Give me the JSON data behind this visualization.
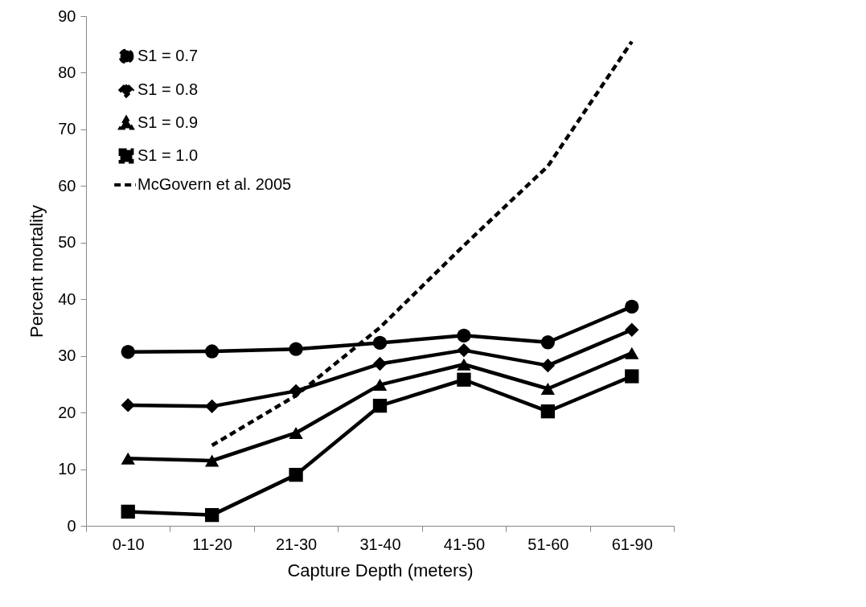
{
  "chart_data": {
    "type": "line",
    "xlabel": "Capture Depth (meters)",
    "ylabel": "Percent mortality",
    "categories": [
      "0-10",
      "11-20",
      "21-30",
      "31-40",
      "41-50",
      "51-60",
      "61-90"
    ],
    "ylim": [
      0,
      90
    ],
    "yticks": [
      0,
      10,
      20,
      30,
      40,
      50,
      60,
      70,
      80,
      90
    ],
    "grid": false,
    "legend": "top left",
    "series": [
      {
        "name": "S1 = 0.7",
        "color": "#000000",
        "marker": "circle",
        "line_style": "solid",
        "values": [
          30.7,
          30.8,
          31.2,
          32.3,
          33.6,
          32.4,
          38.7
        ]
      },
      {
        "name": "S1 = 0.8",
        "color": "#000000",
        "marker": "diamond",
        "line_style": "solid",
        "values": [
          21.3,
          21.1,
          23.8,
          28.6,
          31.0,
          28.3,
          34.6
        ]
      },
      {
        "name": "S1 = 0.9",
        "color": "#000000",
        "marker": "triangle",
        "line_style": "solid",
        "values": [
          11.9,
          11.5,
          16.4,
          24.9,
          28.5,
          24.2,
          30.5
        ]
      },
      {
        "name": "S1 = 1.0",
        "color": "#000000",
        "marker": "square",
        "line_style": "solid",
        "values": [
          2.5,
          1.9,
          9.0,
          21.2,
          25.8,
          20.2,
          26.4
        ]
      },
      {
        "name": "McGovern et al. 2005",
        "color": "#000000",
        "marker": "none",
        "line_style": "dashed",
        "values": [
          null,
          14.2,
          23.0,
          35.0,
          49.5,
          63.5,
          85.5
        ]
      }
    ]
  }
}
